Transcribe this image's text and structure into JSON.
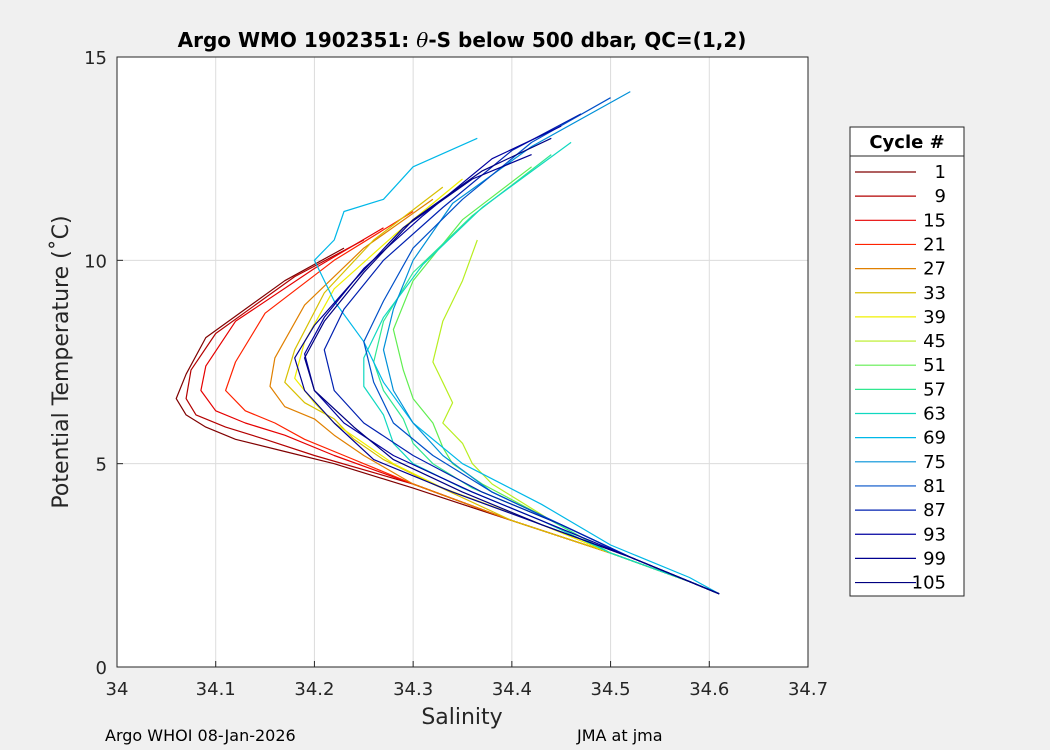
{
  "chart_data": {
    "type": "line",
    "title": "Argo WMO 1902351: θ-S below 500 dbar,  QC=(1,2)",
    "title_parts": {
      "prefix": "Argo WMO 1902351: ",
      "symbol": "θ",
      "suffix": "-S below 500 dbar,  QC=(1,2)"
    },
    "xlabel": "Salinity",
    "ylabel": "Potential Temperature (˚C)",
    "xlim": [
      34,
      34.7
    ],
    "ylim": [
      0,
      15
    ],
    "xticks": [
      "34",
      "34.1",
      "34.2",
      "34.3",
      "34.4",
      "34.5",
      "34.6",
      "34.7"
    ],
    "yticks": [
      "0",
      "5",
      "10",
      "15"
    ],
    "grid": true,
    "legend": {
      "title": "Cycle #",
      "placement": "right-outside",
      "entries": [
        "1",
        "9",
        "15",
        "21",
        "27",
        "33",
        "39",
        "45",
        "51",
        "57",
        "63",
        "69",
        "75",
        "81",
        "87",
        "93",
        "99",
        "105"
      ],
      "colors": [
        "#800000",
        "#b30000",
        "#e60000",
        "#ff2200",
        "#e08000",
        "#d8c000",
        "#f0f000",
        "#b8ee20",
        "#60ee50",
        "#30e890",
        "#10d8c0",
        "#00b8e8",
        "#0090d8",
        "#0050c8",
        "#0020b0",
        "#0000a0",
        "#000090",
        "#000080"
      ]
    },
    "series": [
      {
        "color": "#800000",
        "x": [
          34.23,
          34.17,
          34.09,
          34.07,
          34.06,
          34.07,
          34.09,
          34.12,
          34.17,
          34.22,
          34.3,
          34.4,
          34.5,
          34.58,
          34.61
        ],
        "y": [
          10.3,
          9.5,
          8.1,
          7.2,
          6.6,
          6.2,
          5.9,
          5.6,
          5.3,
          5.0,
          4.4,
          3.6,
          2.8,
          2.1,
          1.8
        ]
      },
      {
        "color": "#b30000",
        "x": [
          34.25,
          34.18,
          34.1,
          34.075,
          34.07,
          34.08,
          34.11,
          34.15,
          34.2,
          34.3,
          34.4,
          34.5,
          34.58,
          34.61
        ],
        "y": [
          10.5,
          9.6,
          8.2,
          7.3,
          6.6,
          6.2,
          5.9,
          5.6,
          5.2,
          4.5,
          3.6,
          2.8,
          2.1,
          1.8
        ]
      },
      {
        "color": "#e60000",
        "x": [
          34.27,
          34.2,
          34.12,
          34.09,
          34.085,
          34.1,
          34.13,
          34.17,
          34.22,
          34.3,
          34.4,
          34.5,
          34.58,
          34.61
        ],
        "y": [
          10.8,
          9.8,
          8.5,
          7.4,
          6.8,
          6.3,
          6.0,
          5.7,
          5.2,
          4.5,
          3.6,
          2.8,
          2.1,
          1.8
        ]
      },
      {
        "color": "#ff2200",
        "x": [
          34.3,
          34.22,
          34.15,
          34.12,
          34.11,
          34.13,
          34.16,
          34.19,
          34.23,
          34.3,
          34.4,
          34.5,
          34.58,
          34.61
        ],
        "y": [
          11.2,
          10.0,
          8.7,
          7.5,
          6.8,
          6.3,
          6.0,
          5.6,
          5.2,
          4.5,
          3.6,
          2.8,
          2.1,
          1.8
        ]
      },
      {
        "color": "#e08000",
        "x": [
          34.32,
          34.25,
          34.19,
          34.16,
          34.155,
          34.17,
          34.2,
          34.22,
          34.25,
          34.3,
          34.4,
          34.5,
          34.58,
          34.61
        ],
        "y": [
          11.5,
          10.3,
          8.9,
          7.6,
          6.9,
          6.4,
          6.1,
          5.7,
          5.2,
          4.5,
          3.6,
          2.8,
          2.1,
          1.8
        ]
      },
      {
        "color": "#d8c000",
        "x": [
          34.33,
          34.26,
          34.21,
          34.18,
          34.17,
          34.19,
          34.22,
          34.24,
          34.27,
          34.32,
          34.4,
          34.5,
          34.58,
          34.61
        ],
        "y": [
          11.8,
          10.5,
          9.2,
          7.8,
          7.0,
          6.5,
          6.1,
          5.6,
          5.1,
          4.5,
          3.6,
          2.8,
          2.1,
          1.8
        ]
      },
      {
        "color": "#f0f000",
        "x": [
          34.35,
          34.28,
          34.22,
          34.19,
          34.18,
          34.2,
          34.22,
          34.25,
          34.28,
          34.33,
          34.42,
          34.5,
          34.58,
          34.61
        ],
        "y": [
          12.0,
          10.6,
          9.3,
          8.0,
          7.1,
          6.5,
          6.0,
          5.5,
          5.0,
          4.4,
          3.6,
          2.8,
          2.1,
          1.8
        ]
      },
      {
        "color": "#b8ee20",
        "x": [
          34.365,
          34.35,
          34.33,
          34.32,
          34.33,
          34.34,
          34.33,
          34.35,
          34.36,
          34.38,
          34.44,
          34.5,
          34.58,
          34.61
        ],
        "y": [
          10.5,
          9.5,
          8.5,
          7.5,
          7.0,
          6.5,
          6.0,
          5.5,
          5.0,
          4.5,
          3.6,
          2.8,
          2.1,
          1.8
        ]
      },
      {
        "color": "#60ee50",
        "x": [
          34.42,
          34.35,
          34.3,
          34.28,
          34.29,
          34.3,
          34.32,
          34.33,
          34.34,
          34.37,
          34.44,
          34.5,
          34.58,
          34.61
        ],
        "y": [
          12.3,
          11.0,
          9.5,
          8.3,
          7.3,
          6.6,
          6.0,
          5.4,
          5.0,
          4.5,
          3.6,
          2.8,
          2.1,
          1.8
        ]
      },
      {
        "color": "#30e890",
        "x": [
          34.44,
          34.36,
          34.3,
          34.27,
          34.26,
          34.27,
          34.29,
          34.3,
          34.32,
          34.36,
          34.44,
          34.5,
          34.58,
          34.61
        ],
        "y": [
          12.6,
          11.1,
          9.7,
          8.5,
          7.5,
          6.8,
          6.1,
          5.5,
          5.0,
          4.4,
          3.6,
          2.8,
          2.1,
          1.8
        ]
      },
      {
        "color": "#10d8c0",
        "x": [
          34.46,
          34.37,
          34.31,
          34.27,
          34.25,
          34.25,
          34.27,
          34.28,
          34.3,
          34.35,
          34.43,
          34.5,
          34.58,
          34.61
        ],
        "y": [
          12.9,
          11.3,
          9.9,
          8.6,
          7.6,
          6.9,
          6.2,
          5.5,
          5.0,
          4.4,
          3.6,
          2.8,
          2.1,
          1.8
        ]
      },
      {
        "color": "#00b8e8",
        "x": [
          34.365,
          34.3,
          34.27,
          34.23,
          34.22,
          34.2,
          34.22,
          34.25,
          34.27,
          34.3,
          34.35,
          34.43,
          34.5,
          34.58,
          34.61
        ],
        "y": [
          13.0,
          12.3,
          11.5,
          11.2,
          10.5,
          10.0,
          9.0,
          8.0,
          7.0,
          6.0,
          5.0,
          4.0,
          3.0,
          2.2,
          1.8
        ]
      },
      {
        "color": "#0090d8",
        "x": [
          34.52,
          34.42,
          34.34,
          34.3,
          34.28,
          34.27,
          34.28,
          34.3,
          34.33,
          34.38,
          34.45,
          34.52,
          34.58,
          34.61
        ],
        "y": [
          14.15,
          12.8,
          11.4,
          10.0,
          8.8,
          7.8,
          6.8,
          6.0,
          5.2,
          4.3,
          3.5,
          2.7,
          2.1,
          1.8
        ]
      },
      {
        "color": "#0050c8",
        "x": [
          34.5,
          34.42,
          34.35,
          34.3,
          34.27,
          34.25,
          34.26,
          34.28,
          34.32,
          34.38,
          34.45,
          34.52,
          34.58,
          34.61
        ],
        "y": [
          14.0,
          12.9,
          11.5,
          10.3,
          9.0,
          8.0,
          7.0,
          6.0,
          5.2,
          4.3,
          3.5,
          2.7,
          2.1,
          1.8
        ]
      },
      {
        "color": "#0020b0",
        "x": [
          34.47,
          34.4,
          34.33,
          34.27,
          34.23,
          34.21,
          34.22,
          34.25,
          34.3,
          34.37,
          34.45,
          34.52,
          34.58,
          34.61
        ],
        "y": [
          13.6,
          12.7,
          11.3,
          10.0,
          8.8,
          7.8,
          6.8,
          6.0,
          5.2,
          4.3,
          3.5,
          2.7,
          2.1,
          1.8
        ]
      },
      {
        "color": "#0000a0",
        "x": [
          34.45,
          34.38,
          34.31,
          34.25,
          34.21,
          34.19,
          34.2,
          34.23,
          34.28,
          34.36,
          34.44,
          34.52,
          34.58,
          34.61
        ],
        "y": [
          13.3,
          12.5,
          11.1,
          9.8,
          8.6,
          7.7,
          6.8,
          6.0,
          5.2,
          4.3,
          3.5,
          2.7,
          2.1,
          1.8
        ]
      },
      {
        "color": "#000090",
        "x": [
          34.42,
          34.36,
          34.29,
          34.24,
          34.2,
          34.18,
          34.19,
          34.22,
          34.26,
          34.34,
          34.43,
          34.52,
          34.58,
          34.61
        ],
        "y": [
          12.6,
          12.0,
          10.8,
          9.5,
          8.4,
          7.6,
          6.8,
          6.0,
          5.1,
          4.3,
          3.5,
          2.7,
          2.1,
          1.8
        ]
      },
      {
        "color": "#000080",
        "x": [
          34.44,
          34.37,
          34.3,
          34.25,
          34.21,
          34.19,
          34.2,
          34.24,
          34.28,
          34.35,
          34.43,
          34.52,
          34.58,
          34.61
        ],
        "y": [
          13.0,
          12.2,
          11.0,
          9.7,
          8.5,
          7.6,
          6.8,
          5.9,
          5.1,
          4.3,
          3.5,
          2.7,
          2.1,
          1.8
        ]
      }
    ]
  },
  "footer": {
    "left": "Argo WHOI 08-Jan-2026",
    "right": "JMA at jma"
  }
}
